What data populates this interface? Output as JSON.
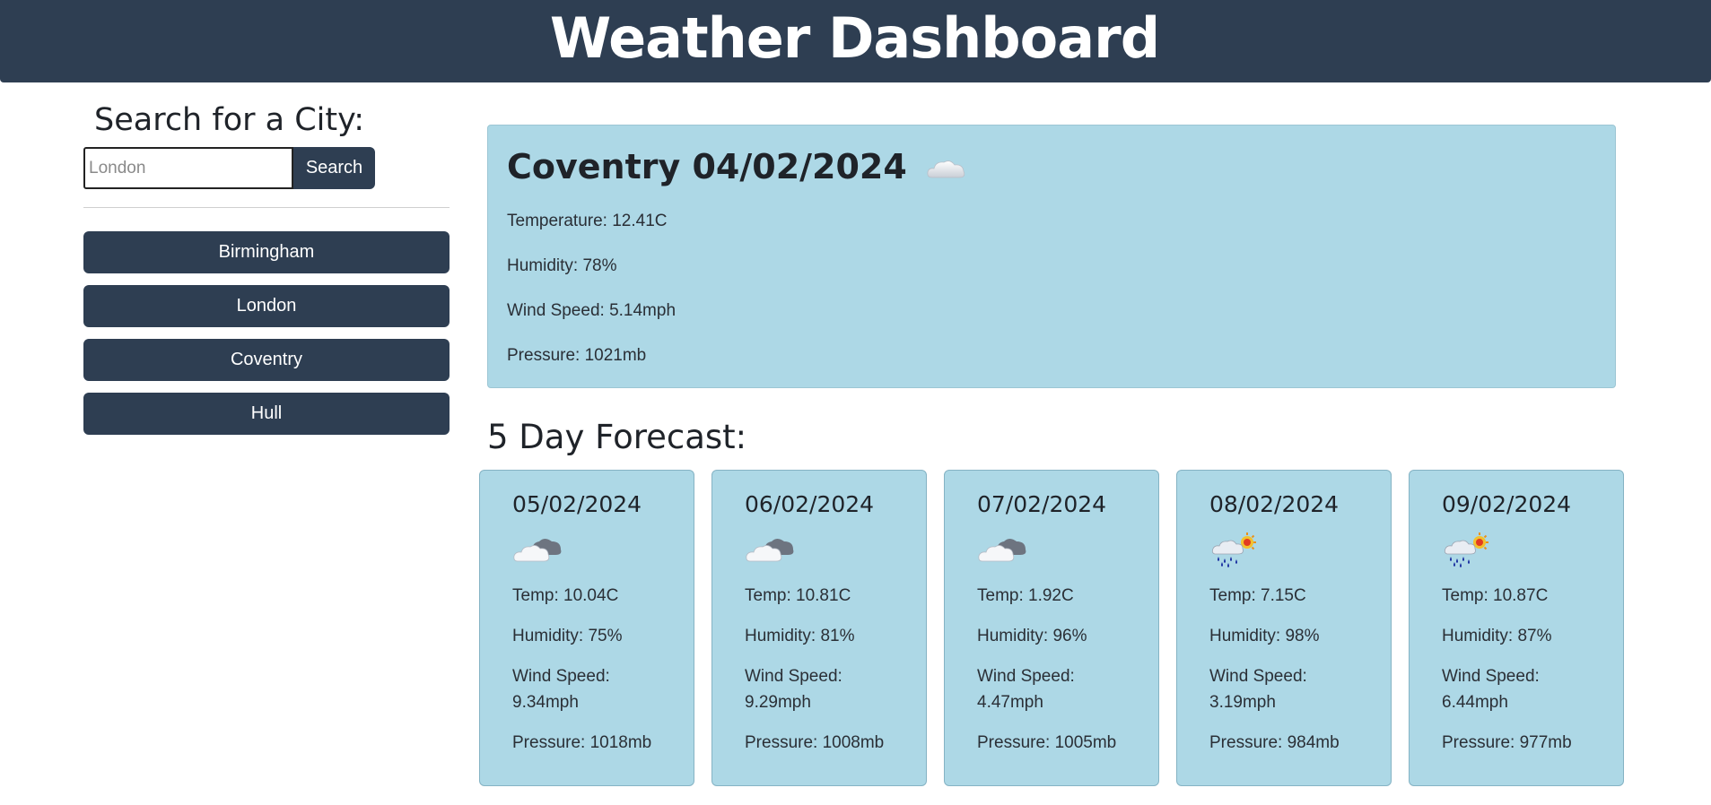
{
  "header": {
    "title": "Weather Dashboard"
  },
  "sidebar": {
    "search_title": "Search for a City:",
    "search_placeholder": "London",
    "search_button": "Search",
    "cities": [
      "Birmingham",
      "London",
      "Coventry",
      "Hull"
    ]
  },
  "current": {
    "title": "Coventry 04/02/2024",
    "icon": "cloud-icon",
    "temperature": "Temperature: 12.41C",
    "humidity": "Humidity: 78%",
    "wind": "Wind Speed: 5.14mph",
    "pressure": "Pressure: 1021mb"
  },
  "forecast": {
    "title": "5 Day Forecast:",
    "days": [
      {
        "date": "05/02/2024",
        "icon": "overcast-clouds-icon",
        "temp": "Temp: 10.04C",
        "humidity": "Humidity: 75%",
        "wind_label": "Wind Speed:",
        "wind_value": "9.34mph",
        "pressure": "Pressure: 1018mb"
      },
      {
        "date": "06/02/2024",
        "icon": "overcast-clouds-icon",
        "temp": "Temp: 10.81C",
        "humidity": "Humidity: 81%",
        "wind_label": "Wind Speed:",
        "wind_value": "9.29mph",
        "pressure": "Pressure: 1008mb"
      },
      {
        "date": "07/02/2024",
        "icon": "overcast-clouds-icon",
        "temp": "Temp: 1.92C",
        "humidity": "Humidity: 96%",
        "wind_label": "Wind Speed:",
        "wind_value": "4.47mph",
        "pressure": "Pressure: 1005mb"
      },
      {
        "date": "08/02/2024",
        "icon": "rain-sun-icon",
        "temp": "Temp: 7.15C",
        "humidity": "Humidity: 98%",
        "wind_label": "Wind Speed:",
        "wind_value": "3.19mph",
        "pressure": "Pressure: 984mb"
      },
      {
        "date": "09/02/2024",
        "icon": "rain-sun-icon",
        "temp": "Temp: 10.87C",
        "humidity": "Humidity: 87%",
        "wind_label": "Wind Speed:",
        "wind_value": "6.44mph",
        "pressure": "Pressure: 977mb"
      }
    ]
  }
}
